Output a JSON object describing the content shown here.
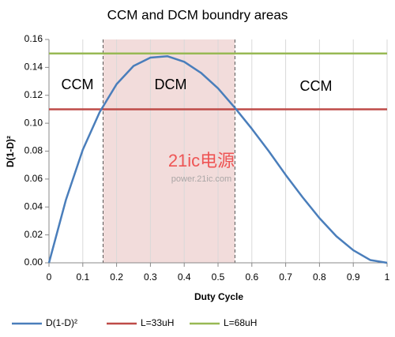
{
  "chart_data": {
    "type": "line",
    "title": "CCM and DCM boundry areas",
    "x_label": "Duty Cycle",
    "y_label": "D(1-D)²",
    "xlim": [
      0,
      1
    ],
    "ylim": [
      0,
      0.16
    ],
    "xticks": [
      0,
      0.1,
      0.2,
      0.3,
      0.4,
      0.5,
      0.6,
      0.7,
      0.8,
      0.9,
      1
    ],
    "yticks": [
      {
        "value": 0,
        "label": "0.00"
      },
      {
        "value": 0.02,
        "label": "0.02"
      },
      {
        "value": 0.04,
        "label": "0.04"
      },
      {
        "value": 0.06,
        "label": "0.06"
      },
      {
        "value": 0.08,
        "label": "0.08"
      },
      {
        "value": 0.1,
        "label": "0.10"
      },
      {
        "value": 0.12,
        "label": "0.12"
      },
      {
        "value": 0.14,
        "label": "0.14"
      },
      {
        "value": 0.16,
        "label": "0.16"
      }
    ],
    "grid": "x",
    "legend": "bottom",
    "series": [
      {
        "name": "D(1-D)²",
        "color": "#4a7ebb",
        "x": [
          0,
          0.05,
          0.1,
          0.15,
          0.2,
          0.25,
          0.3,
          0.35,
          0.4,
          0.45,
          0.5,
          0.55,
          0.6,
          0.65,
          0.7,
          0.75,
          0.8,
          0.85,
          0.9,
          0.95,
          1
        ],
        "values": [
          0,
          0.045,
          0.081,
          0.108,
          0.128,
          0.141,
          0.147,
          0.148,
          0.144,
          0.136,
          0.125,
          0.111,
          0.096,
          0.08,
          0.063,
          0.047,
          0.032,
          0.019,
          0.009,
          0.002,
          0
        ]
      },
      {
        "name": "L=33uH",
        "color": "#be4b48",
        "x": [
          0,
          1
        ],
        "values": [
          0.11,
          0.11
        ]
      },
      {
        "name": "L=68uH",
        "color": "#98b954",
        "x": [
          0,
          1
        ],
        "values": [
          0.15,
          0.15
        ]
      }
    ],
    "shaded_region": {
      "x": [
        0.16,
        0.55
      ],
      "color": "#f2dcdb"
    },
    "annotations": [
      "CCM",
      "DCM",
      "CCM"
    ],
    "watermark": [
      "21ic电源",
      "power.21ic.com"
    ]
  }
}
